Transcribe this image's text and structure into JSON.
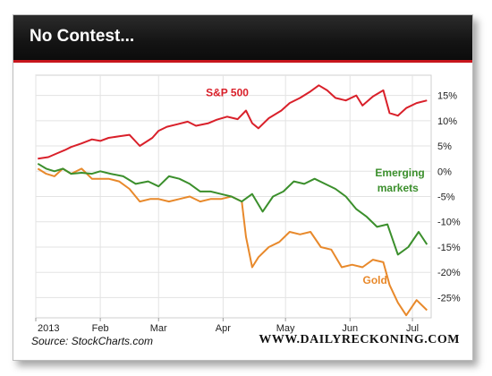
{
  "header": {
    "title": "No Contest..."
  },
  "footer": {
    "source": "Source: StockCharts.com",
    "brand": "WWW.DAILYRECKONING.COM"
  },
  "colors": {
    "sp500": "#d9202a",
    "emerging": "#3b8f2c",
    "gold": "#e8892b",
    "header_bg": "#141414",
    "accent": "#c8161d"
  },
  "chart_data": {
    "type": "line",
    "title": "",
    "xlabel": "",
    "ylabel": "",
    "x_axis": {
      "ticks": [
        "2013",
        "Feb",
        "Mar",
        "Apr",
        "May",
        "Jun",
        "Jul"
      ]
    },
    "y_axis": {
      "ticks": [
        "15%",
        "10%",
        "5%",
        "0%",
        "-5%",
        "-10%",
        "-15%",
        "-20%",
        "-25%"
      ],
      "range": [
        -29,
        19
      ],
      "side": "right"
    },
    "grid": true,
    "series": [
      {
        "name": "S&P 500",
        "color": "#d9202a",
        "x": [
          "2013-01-02",
          "2013-01-07",
          "2013-01-11",
          "2013-01-15",
          "2013-01-18",
          "2013-01-23",
          "2013-01-28",
          "2013-02-01",
          "2013-02-05",
          "2013-02-10",
          "2013-02-15",
          "2013-02-20",
          "2013-02-26",
          "2013-03-01",
          "2013-03-05",
          "2013-03-10",
          "2013-03-15",
          "2013-03-19",
          "2013-03-25",
          "2013-03-29",
          "2013-04-03",
          "2013-04-08",
          "2013-04-12",
          "2013-04-15",
          "2013-04-18",
          "2013-04-23",
          "2013-04-29",
          "2013-05-03",
          "2013-05-08",
          "2013-05-13",
          "2013-05-17",
          "2013-05-21",
          "2013-05-25",
          "2013-05-30",
          "2013-06-04",
          "2013-06-07",
          "2013-06-12",
          "2013-06-17",
          "2013-06-20",
          "2013-06-24",
          "2013-06-28",
          "2013-07-03",
          "2013-07-08"
        ],
        "values": [
          2.5,
          2.8,
          3.5,
          4.2,
          4.8,
          5.5,
          6.3,
          6.0,
          6.6,
          6.9,
          7.2,
          5.0,
          6.6,
          8.0,
          8.8,
          9.3,
          9.8,
          9.0,
          9.5,
          10.2,
          10.8,
          10.3,
          12.0,
          9.5,
          8.5,
          10.5,
          12.0,
          13.5,
          14.5,
          15.8,
          17.0,
          16.0,
          14.5,
          14.0,
          15.0,
          13.0,
          14.8,
          16.0,
          11.5,
          11.0,
          12.5,
          13.5,
          14.0
        ]
      },
      {
        "name": "Emerging markets",
        "color": "#3b8f2c",
        "x": [
          "2013-01-02",
          "2013-01-06",
          "2013-01-10",
          "2013-01-14",
          "2013-01-18",
          "2013-01-23",
          "2013-01-28",
          "2013-02-01",
          "2013-02-06",
          "2013-02-12",
          "2013-02-18",
          "2013-02-24",
          "2013-03-01",
          "2013-03-06",
          "2013-03-11",
          "2013-03-16",
          "2013-03-21",
          "2013-03-26",
          "2013-03-31",
          "2013-04-05",
          "2013-04-10",
          "2013-04-15",
          "2013-04-20",
          "2013-04-25",
          "2013-04-30",
          "2013-05-05",
          "2013-05-10",
          "2013-05-15",
          "2013-05-20",
          "2013-05-25",
          "2013-05-30",
          "2013-06-04",
          "2013-06-09",
          "2013-06-14",
          "2013-06-19",
          "2013-06-24",
          "2013-06-29",
          "2013-07-04",
          "2013-07-08"
        ],
        "values": [
          1.5,
          0.5,
          0.0,
          0.5,
          -0.5,
          -0.3,
          -0.5,
          0.0,
          -0.5,
          -1.0,
          -2.5,
          -2.0,
          -3.0,
          -1.0,
          -1.5,
          -2.5,
          -4.0,
          -4.0,
          -4.5,
          -5.0,
          -6.0,
          -4.5,
          -8.0,
          -5.0,
          -4.0,
          -2.0,
          -2.5,
          -1.5,
          -2.5,
          -3.5,
          -5.0,
          -7.5,
          -9.0,
          -11.0,
          -10.5,
          -16.5,
          -15.0,
          -12.0,
          -14.5
        ]
      },
      {
        "name": "Gold",
        "color": "#e8892b",
        "x": [
          "2013-01-02",
          "2013-01-06",
          "2013-01-10",
          "2013-01-14",
          "2013-01-18",
          "2013-01-23",
          "2013-01-28",
          "2013-02-01",
          "2013-02-05",
          "2013-02-10",
          "2013-02-15",
          "2013-02-20",
          "2013-02-25",
          "2013-03-01",
          "2013-03-06",
          "2013-03-11",
          "2013-03-16",
          "2013-03-21",
          "2013-03-26",
          "2013-03-31",
          "2013-04-05",
          "2013-04-10",
          "2013-04-12",
          "2013-04-15",
          "2013-04-18",
          "2013-04-23",
          "2013-04-28",
          "2013-05-03",
          "2013-05-08",
          "2013-05-13",
          "2013-05-18",
          "2013-05-23",
          "2013-05-28",
          "2013-06-02",
          "2013-06-07",
          "2013-06-12",
          "2013-06-17",
          "2013-06-20",
          "2013-06-24",
          "2013-06-28",
          "2013-07-03",
          "2013-07-08"
        ],
        "values": [
          0.5,
          -0.5,
          -1.0,
          0.5,
          -0.5,
          0.5,
          -1.5,
          -1.5,
          -1.5,
          -2.0,
          -3.5,
          -6.0,
          -5.5,
          -5.5,
          -6.0,
          -5.5,
          -5.0,
          -6.0,
          -5.5,
          -5.5,
          -5.0,
          -6.0,
          -13.0,
          -19.0,
          -17.0,
          -15.0,
          -14.0,
          -12.0,
          -12.5,
          -12.0,
          -15.0,
          -15.5,
          -19.0,
          -18.5,
          -19.0,
          -17.5,
          -18.0,
          -22.5,
          -26.0,
          -28.5,
          -25.5,
          -27.5
        ]
      }
    ],
    "annotations": [
      {
        "text": "S&P 500",
        "series": "S&P 500"
      },
      {
        "text": "Emerging",
        "series": "Emerging markets"
      },
      {
        "text": "markets",
        "series": "Emerging markets"
      },
      {
        "text": "Gold",
        "series": "Gold"
      }
    ]
  }
}
